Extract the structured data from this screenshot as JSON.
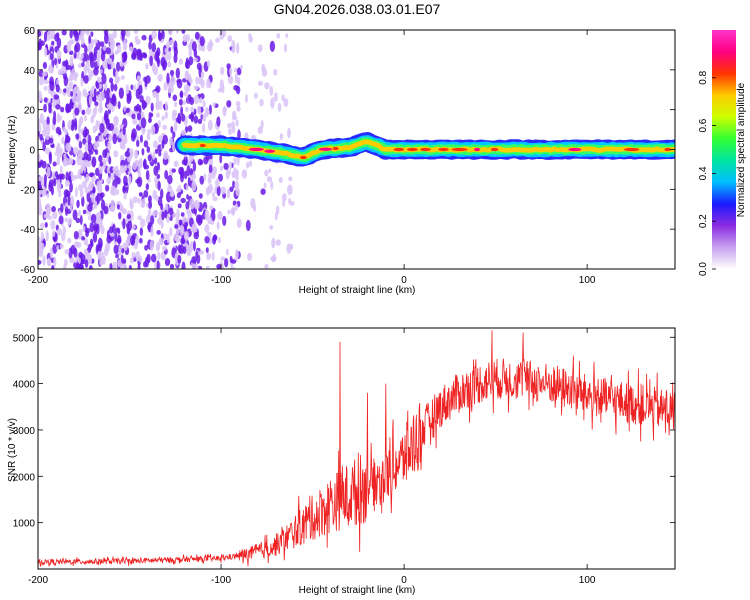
{
  "title": "GN04.2026.038.03.01.E07",
  "colors": {
    "snr_line": "#ee2222",
    "scatter_main": "#6a1ae6",
    "scatter_light": "#d9c2f7",
    "frame": "#000000"
  },
  "chart_data": [
    {
      "type": "heatmap",
      "title": "GN04.2026.038.03.01.E07",
      "xlabel": "Height of straight line (km)",
      "ylabel": "Frequency (Hz)",
      "xlim": [
        -200,
        148
      ],
      "ylim": [
        -60,
        60
      ],
      "xticks": [
        -200,
        -100,
        0,
        100
      ],
      "xtick_labels": [
        "-200",
        "-100",
        "0",
        "100"
      ],
      "yticks": [
        -60,
        -40,
        -20,
        0,
        20,
        40,
        60
      ],
      "ytick_labels": [
        "-60",
        "-40",
        "-20",
        "0",
        "20",
        "40",
        "60"
      ],
      "description_of_pattern": "noise for heights below ~-90 km; narrow band centred near 0 Hz from ~-120 km upward",
      "band": {
        "start_km": -120,
        "end_km": 148,
        "center_hz": [
          {
            "x": -120,
            "y": 2
          },
          {
            "x": -100,
            "y": 2
          },
          {
            "x": -80,
            "y": 0
          },
          {
            "x": -65,
            "y": -2
          },
          {
            "x": -55,
            "y": -4
          },
          {
            "x": -45,
            "y": 0
          },
          {
            "x": -30,
            "y": 1
          },
          {
            "x": -20,
            "y": 4
          },
          {
            "x": -10,
            "y": 0
          },
          {
            "x": 0,
            "y": 0
          },
          {
            "x": 148,
            "y": 0
          }
        ],
        "halfwidth_hz": 3
      },
      "colorbar": {
        "label": "Normalized spectral amplitude",
        "range": [
          0,
          1
        ],
        "ticks": [
          0.0,
          0.2,
          0.4,
          0.6,
          0.8
        ],
        "tick_labels": [
          "0.0",
          "0.2",
          "0.4",
          "0.6",
          "0.8"
        ],
        "stops": [
          "#ffffff",
          "#c8a0f0",
          "#8b2be2",
          "#1a1aff",
          "#00bfff",
          "#00e5a0",
          "#33ff33",
          "#ccff00",
          "#ffcc00",
          "#ff3300",
          "#ff0080",
          "#ff33cc"
        ]
      }
    },
    {
      "type": "line",
      "xlabel": "Height of straight line (km)",
      "ylabel": "SNR (10 * v/v)",
      "xlim": [
        -200,
        148
      ],
      "ylim": [
        0,
        5200
      ],
      "xticks": [
        -200,
        -100,
        0,
        100
      ],
      "xtick_labels": [
        "-200",
        "-100",
        "0",
        "100"
      ],
      "yticks": [
        1000,
        2000,
        3000,
        4000,
        5000
      ],
      "ytick_labels": [
        "1000",
        "2000",
        "3000",
        "4000",
        "5000"
      ],
      "series": [
        {
          "name": "SNR",
          "trend": [
            {
              "x": -200,
              "y": 150
            },
            {
              "x": -150,
              "y": 170
            },
            {
              "x": -100,
              "y": 230
            },
            {
              "x": -85,
              "y": 320
            },
            {
              "x": -70,
              "y": 500
            },
            {
              "x": -60,
              "y": 800
            },
            {
              "x": -50,
              "y": 1100
            },
            {
              "x": -40,
              "y": 1400
            },
            {
              "x": -30,
              "y": 1600
            },
            {
              "x": -20,
              "y": 1800
            },
            {
              "x": -10,
              "y": 2000
            },
            {
              "x": 0,
              "y": 2400
            },
            {
              "x": 10,
              "y": 3000
            },
            {
              "x": 20,
              "y": 3500
            },
            {
              "x": 30,
              "y": 3800
            },
            {
              "x": 40,
              "y": 4000
            },
            {
              "x": 50,
              "y": 4100
            },
            {
              "x": 60,
              "y": 4100
            },
            {
              "x": 80,
              "y": 4000
            },
            {
              "x": 100,
              "y": 3750
            },
            {
              "x": 120,
              "y": 3600
            },
            {
              "x": 148,
              "y": 3400
            }
          ],
          "peaks": [
            {
              "x": -35,
              "y": 4900
            },
            {
              "x": -20,
              "y": 3800
            },
            {
              "x": -10,
              "y": 4000
            },
            {
              "x": 48,
              "y": 5150
            },
            {
              "x": 65,
              "y": 5100
            }
          ]
        }
      ]
    }
  ]
}
